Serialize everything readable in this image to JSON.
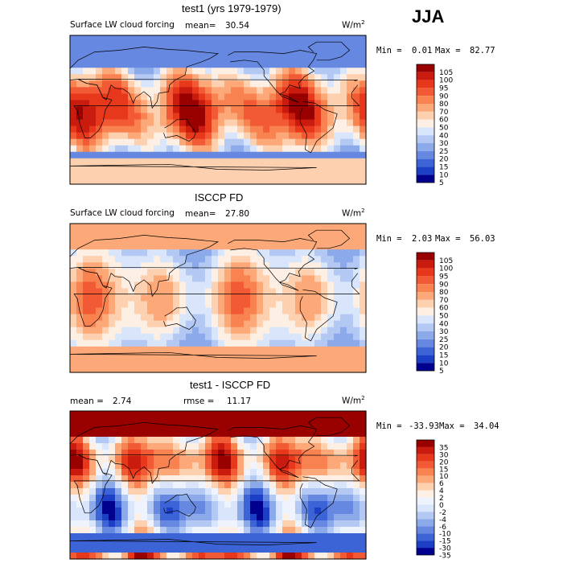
{
  "season": "JJA",
  "chart_data": [
    {
      "type": "heatmap",
      "title": "test1 (yrs 1979-1979)",
      "field_label": "Surface LW cloud forcing",
      "mean_label": "mean=",
      "mean_value": "30.54",
      "units": "W/m",
      "units_exp": "2",
      "min_label": "Min =",
      "min_value": "0.01",
      "max_label": "Max =",
      "max_value": "82.77",
      "colorbar_ticks": [
        "105",
        "100",
        "95",
        "90",
        "80",
        "70",
        "60",
        "50",
        "40",
        "30",
        "25",
        "20",
        "15",
        "10",
        "5"
      ],
      "colorbar_colors": [
        "#990000",
        "#c91b0e",
        "#e8381c",
        "#f25a35",
        "#f98350",
        "#fca879",
        "#fdd0b0",
        "#fdefe3",
        "#d9e5fa",
        "#b3c9f4",
        "#8caae9",
        "#6688e0",
        "#3d64d6",
        "#1c3fc6",
        "#00008f"
      ]
    },
    {
      "type": "heatmap",
      "title": "ISCCP FD",
      "field_label": "Surface LW cloud forcing",
      "mean_label": "mean=",
      "mean_value": "27.80",
      "units": "W/m",
      "units_exp": "2",
      "min_label": "Min =",
      "min_value": "2.03",
      "max_label": "Max =",
      "max_value": "56.03",
      "colorbar_ticks": [
        "105",
        "100",
        "95",
        "90",
        "80",
        "70",
        "60",
        "50",
        "40",
        "30",
        "25",
        "20",
        "15",
        "10",
        "5"
      ],
      "colorbar_colors": [
        "#990000",
        "#c91b0e",
        "#e8381c",
        "#f25a35",
        "#f98350",
        "#fca879",
        "#fdd0b0",
        "#fdefe3",
        "#d9e5fa",
        "#b3c9f4",
        "#8caae9",
        "#6688e0",
        "#3d64d6",
        "#1c3fc6",
        "#00008f"
      ]
    },
    {
      "type": "heatmap",
      "title": "test1 - ISCCP FD",
      "mean_label": "mean =",
      "mean_value": "2.74",
      "rmse_label": "rmse =",
      "rmse_value": "11.17",
      "units": "W/m",
      "units_exp": "2",
      "min_label": "Min =",
      "min_value": "-33.93",
      "max_label": "Max =",
      "max_value": "34.04",
      "colorbar_ticks": [
        "35",
        "30",
        "20",
        "15",
        "10",
        "6",
        "4",
        "2",
        "0",
        "-2",
        "-4",
        "-6",
        "-10",
        "-15",
        "-30",
        "-35"
      ],
      "colorbar_colors": [
        "#990000",
        "#c91b0e",
        "#e8381c",
        "#f25a35",
        "#f98350",
        "#fca879",
        "#fdd0b0",
        "#fdefe3",
        "#eef3fd",
        "#d9e5fa",
        "#b3c9f4",
        "#8caae9",
        "#6688e0",
        "#3d64d6",
        "#1c3fc6",
        "#00008f"
      ]
    }
  ]
}
